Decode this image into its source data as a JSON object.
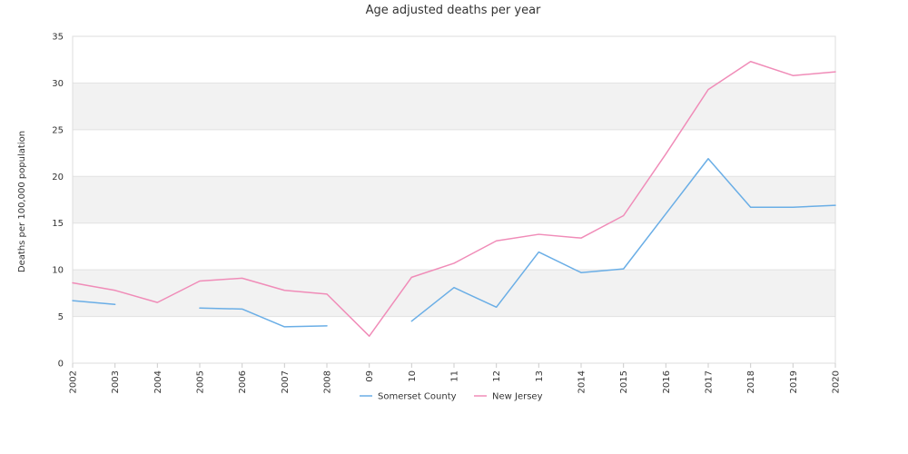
{
  "chart_data": {
    "type": "line",
    "title": "Age adjusted deaths per year",
    "ylabel": "Deaths per 100,000 population",
    "xlabel": "",
    "ylim": [
      0,
      35
    ],
    "yticks": [
      "0",
      "5",
      "10",
      "15",
      "20",
      "25",
      "30",
      "35"
    ],
    "categories": [
      "2002",
      "2003",
      "2004",
      "2005",
      "2006",
      "2007",
      "2008",
      "09",
      "10",
      "11",
      "12",
      "13",
      "2014",
      "2015",
      "2016",
      "2017",
      "2018",
      "2019",
      "2020"
    ],
    "series": [
      {
        "name": "Somerset County",
        "color": "#6aaee6",
        "values": [
          6.7,
          6.3,
          null,
          5.9,
          5.8,
          3.9,
          4.0,
          null,
          4.5,
          8.1,
          6.0,
          11.9,
          9.7,
          10.1,
          16.0,
          21.9,
          16.7,
          16.7,
          16.9
        ]
      },
      {
        "name": "New Jersey",
        "color": "#f08cb8",
        "values": [
          8.6,
          7.8,
          6.5,
          8.8,
          9.1,
          7.8,
          7.4,
          2.9,
          9.2,
          10.7,
          13.1,
          13.8,
          13.4,
          15.8,
          22.4,
          29.3,
          32.3,
          30.8,
          31.2
        ]
      }
    ],
    "grid": true,
    "legend_position": "bottom-center"
  }
}
